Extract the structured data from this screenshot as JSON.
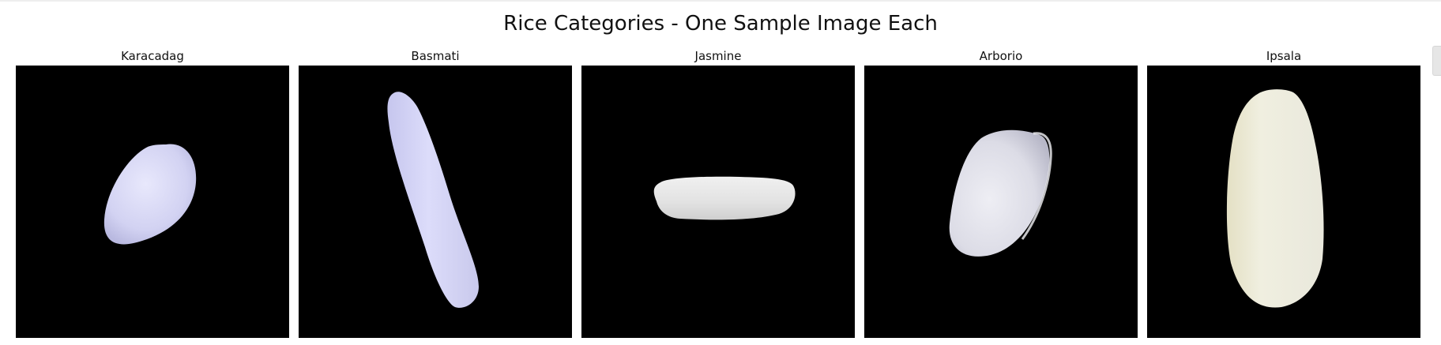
{
  "figure": {
    "title": "Rice Categories - One Sample Image Each"
  },
  "panels": [
    {
      "label": "Karacadag",
      "grain_color": "#d6d6f6"
    },
    {
      "label": "Basmati",
      "grain_color": "#d9d9f8"
    },
    {
      "label": "Jasmine",
      "grain_color": "#e4e4e4"
    },
    {
      "label": "Arborio",
      "grain_color": "#e6e6ee"
    },
    {
      "label": "Ipsala",
      "grain_color": "#ecebdc"
    }
  ],
  "colors": {
    "image_background": "#000000",
    "page_background": "#ffffff"
  }
}
